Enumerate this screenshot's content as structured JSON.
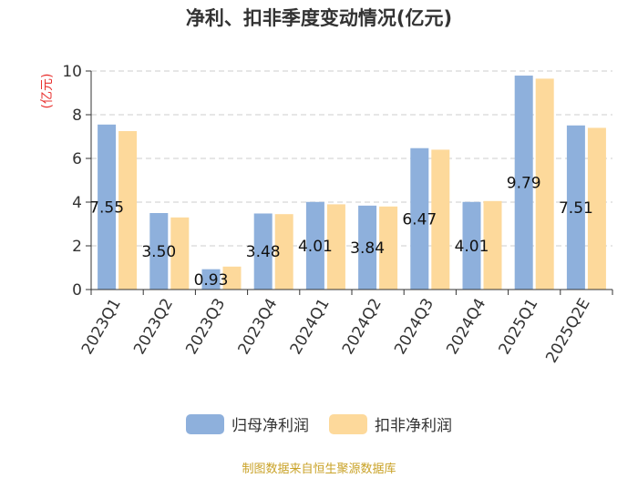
{
  "chart_data": {
    "type": "bar",
    "title": "净利、扣非季度变动情况(亿元)",
    "ylabel": "(亿元)",
    "ylim": [
      0,
      10
    ],
    "yticks": [
      0,
      2,
      4,
      6,
      8,
      10
    ],
    "grid": true,
    "legend_position": "bottom",
    "categories": [
      "2023Q1",
      "2023Q2",
      "2023Q3",
      "2023Q4",
      "2024Q1",
      "2024Q2",
      "2024Q3",
      "2024Q4",
      "2025Q1",
      "2025Q2E"
    ],
    "series": [
      {
        "name": "归母净利润",
        "color": "#8eb0dc",
        "values": [
          7.55,
          3.5,
          0.93,
          3.48,
          4.01,
          3.84,
          6.47,
          4.01,
          9.79,
          7.51
        ],
        "data_labels": [
          "7.55",
          "3.50",
          "0.93",
          "3.48",
          "4.01",
          "3.84",
          "6.47",
          "4.01",
          "9.79",
          "7.51"
        ]
      },
      {
        "name": "扣非净利润",
        "color": "#fdd99b",
        "values": [
          7.25,
          3.3,
          1.05,
          3.45,
          3.9,
          3.8,
          6.4,
          4.05,
          9.65,
          7.4
        ]
      }
    ]
  },
  "source": "制图数据来自恒生聚源数据库"
}
